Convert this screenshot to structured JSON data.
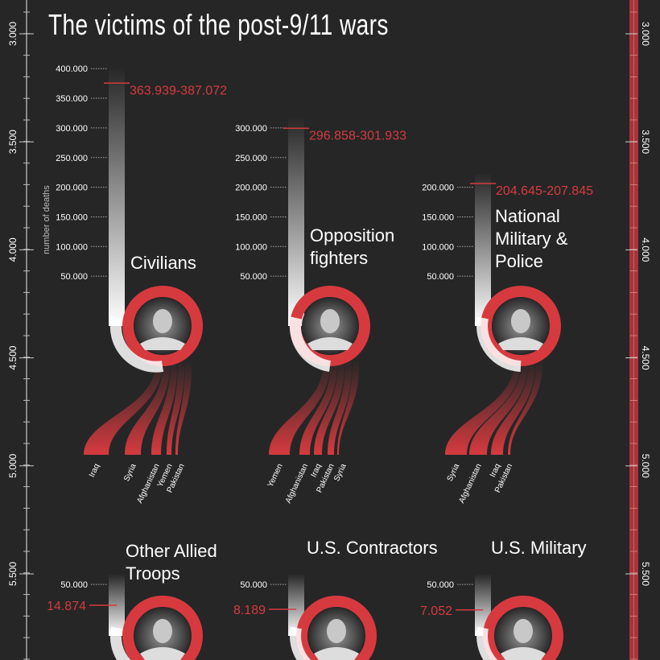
{
  "title": "The victims of the post-9/11 wars",
  "colors": {
    "background": "#262626",
    "accent": "#d63a3f",
    "text": "#ffffff",
    "axis": "#bbbbbb"
  },
  "chart_data": {
    "type": "bar",
    "title": "The victims of the post-9/11 wars",
    "ylabel": "number of deaths",
    "side_axis_ticks": [
      "3.000",
      "3.500",
      "4.000",
      "4.500",
      "5.000",
      "5.500"
    ],
    "panels": [
      {
        "name": "Civilians",
        "range_label": "363.939-387.072",
        "low": 363939,
        "high": 387072,
        "ticks": [
          "50.000",
          "100.000",
          "150.000",
          "200.000",
          "250.000",
          "300.000",
          "350.000",
          "400.000"
        ],
        "countries": [
          "Iraq",
          "Syria",
          "Afghanistan",
          "Yemen",
          "Pakistan"
        ],
        "photo_icon": "child-portrait"
      },
      {
        "name": "Opposition fighters",
        "range_label": "296.858-301.933",
        "low": 296858,
        "high": 301933,
        "ticks": [
          "50.000",
          "100.000",
          "150.000",
          "200.000",
          "250.000",
          "300.000"
        ],
        "countries": [
          "Yemen",
          "Afghanistan",
          "Iraq",
          "Pakistan",
          "Syria"
        ],
        "photo_icon": "fighter-portrait"
      },
      {
        "name": "National Military & Police",
        "range_label": "204.645-207.845",
        "low": 204645,
        "high": 207845,
        "ticks": [
          "50.000",
          "100.000",
          "150.000",
          "200.000"
        ],
        "countries": [
          "Syria",
          "Afghanistan",
          "Iraq",
          "Pakistan"
        ],
        "photo_icon": "soldier-portrait"
      },
      {
        "name": "Other Allied Troops",
        "range_label": "14.874",
        "low": 14874,
        "high": 14874,
        "ticks": [
          "50.000"
        ],
        "countries": [],
        "photo_icon": "allied-soldier-portrait"
      },
      {
        "name": "U.S. Contractors",
        "range_label": "8.189",
        "low": 8189,
        "high": 8189,
        "ticks": [
          "50.000"
        ],
        "countries": [],
        "photo_icon": "contractor-portrait"
      },
      {
        "name": "U.S. Military",
        "range_label": "7.052",
        "low": 7052,
        "high": 7052,
        "ticks": [
          "50.000"
        ],
        "countries": [],
        "photo_icon": "us-soldier-portrait"
      }
    ]
  }
}
